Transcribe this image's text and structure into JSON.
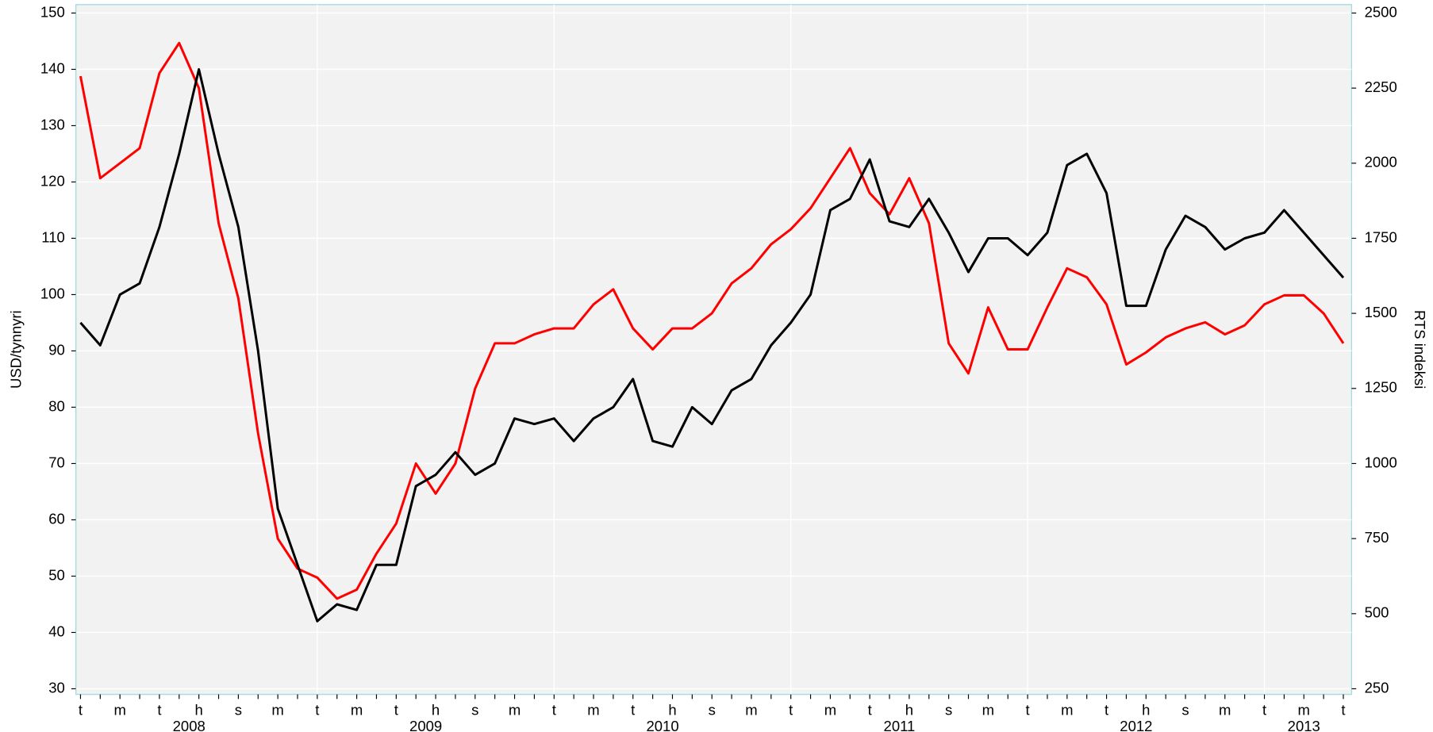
{
  "chart_data": {
    "type": "line",
    "ylabel": "USD/tynnyri",
    "y2label": "RTS indeksi",
    "categories": [
      "t",
      null,
      "m",
      null,
      "t",
      null,
      "h",
      null,
      "s",
      null,
      "m",
      null,
      "t",
      null,
      "m",
      null,
      "t",
      null,
      "h",
      null,
      "s",
      null,
      "m",
      null,
      "t",
      null,
      "m",
      null,
      "t",
      null,
      "h",
      null,
      "s",
      null,
      "m",
      null,
      "t",
      null,
      "m",
      null,
      "t",
      null,
      "h",
      null,
      "s",
      null,
      "m",
      null,
      "t",
      null,
      "m",
      null,
      "t",
      null,
      "h",
      null,
      "s",
      null,
      "m",
      null,
      "t",
      null,
      "m",
      null,
      "t"
    ],
    "years": [
      "2008",
      "2009",
      "2010",
      "2011",
      "2012",
      "2013"
    ],
    "series": [
      {
        "color": "#ff0000",
        "axis": "y2",
        "values": [
          2290,
          1950,
          2000,
          2050,
          2300,
          2400,
          2250,
          1800,
          1550,
          1100,
          750,
          650,
          620,
          550,
          580,
          700,
          800,
          1000,
          900,
          1000,
          1250,
          1400,
          1400,
          1430,
          1450,
          1450,
          1530,
          1580,
          1450,
          1380,
          1450,
          1450,
          1500,
          1600,
          1650,
          1730,
          1780,
          1850,
          1950,
          2050,
          1900,
          1830,
          1950,
          1800,
          1400,
          1300,
          1520,
          1380,
          1380,
          1520,
          1650,
          1620,
          1530,
          1330,
          1370,
          1420,
          1450,
          1470,
          1430,
          1460,
          1530,
          1560,
          1560,
          1500,
          1400
        ]
      },
      {
        "color": "#000000",
        "values": [
          95,
          91,
          100,
          102,
          112,
          125,
          140,
          125,
          112,
          90,
          62,
          52,
          42,
          45,
          44,
          52,
          52,
          66,
          68,
          72,
          68,
          70,
          78,
          77,
          78,
          74,
          78,
          80,
          85,
          74,
          73,
          80,
          77,
          83,
          85,
          91,
          95,
          100,
          115,
          117,
          124,
          113,
          112,
          117,
          111,
          104,
          110,
          110,
          107,
          111,
          123,
          125,
          118,
          98,
          98,
          108,
          114,
          112,
          108,
          110,
          111,
          115,
          111,
          107,
          103
        ]
      }
    ],
    "ylim": [
      29,
      151.5
    ],
    "yticks": [
      30,
      40,
      50,
      60,
      70,
      80,
      90,
      100,
      110,
      120,
      130,
      140,
      150
    ],
    "y2lim": [
      231.25,
      2528.125
    ],
    "y2ticks": [
      250,
      500,
      750,
      1000,
      1250,
      1500,
      1750,
      2000,
      2250,
      2500
    ],
    "grid": true
  }
}
